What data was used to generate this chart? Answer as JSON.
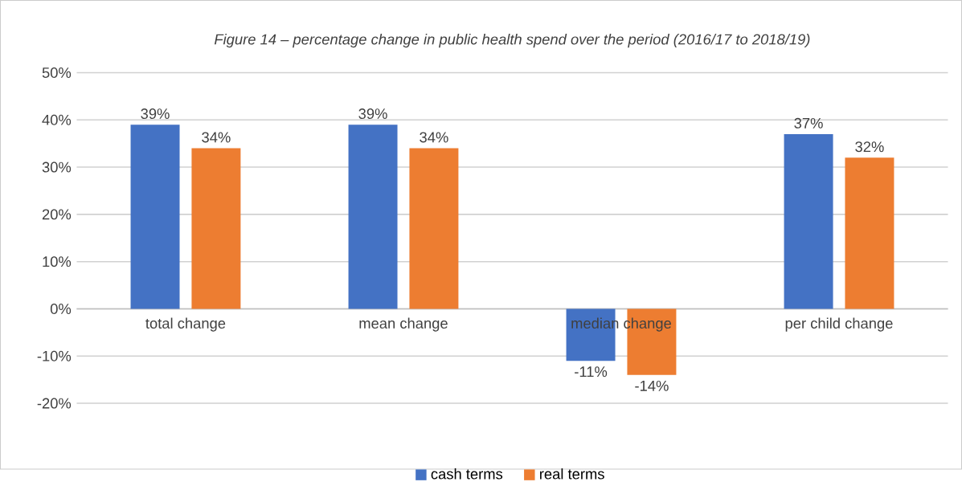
{
  "chart_data": {
    "type": "bar",
    "title": "Figure 14 – percentage change in public health spend over the period (2016/17 to 2018/19)",
    "categories": [
      "total change",
      "mean change",
      "median change",
      "per child change"
    ],
    "series": [
      {
        "name": "cash terms",
        "color": "#4472c4",
        "values": [
          39,
          39,
          -11,
          37
        ],
        "value_labels": [
          "39%",
          "39%",
          "-11%",
          "37%"
        ]
      },
      {
        "name": "real terms",
        "color": "#ed7d31",
        "values": [
          34,
          34,
          -14,
          32
        ],
        "value_labels": [
          "34%",
          "34%",
          "-14%",
          "32%"
        ]
      }
    ],
    "ylim": [
      -20,
      50
    ],
    "yticks": [
      {
        "value": -20,
        "label": "-20%"
      },
      {
        "value": -10,
        "label": "-10%"
      },
      {
        "value": 0,
        "label": "0%"
      },
      {
        "value": 10,
        "label": "10%"
      },
      {
        "value": 20,
        "label": "20%"
      },
      {
        "value": 30,
        "label": "30%"
      },
      {
        "value": 40,
        "label": "40%"
      },
      {
        "value": 50,
        "label": "50%"
      }
    ],
    "grid": "y",
    "legend": "bottom"
  }
}
